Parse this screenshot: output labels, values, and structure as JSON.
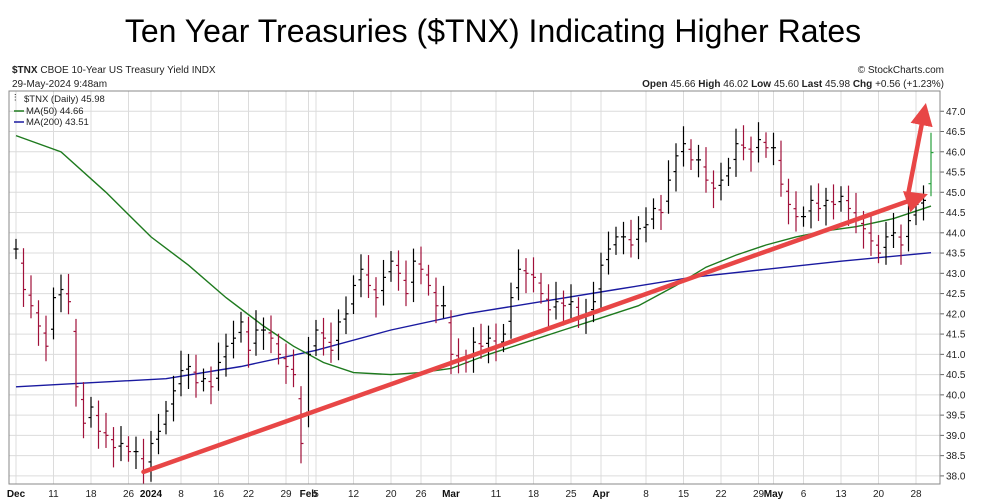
{
  "title": "Ten Year Treasuries ($TNX) Indicating Higher Rates",
  "header": {
    "symbol": "$TNX",
    "description": "CBOE 10-Year US Treasury Yield INDX",
    "date": "29-May-2024 9:48am",
    "credit": "© StockCharts.com",
    "open_label": "Open",
    "open": "45.66",
    "high_label": "High",
    "high": "46.02",
    "low_label": "Low",
    "low": "45.60",
    "last_label": "Last",
    "last": "45.98",
    "chg_label": "Chg",
    "chg": "+0.56 (+1.23%)"
  },
  "legend": {
    "price": "$TNX (Daily) 45.98",
    "ma50": "MA(50) 44.66",
    "ma200": "MA(200) 43.51"
  },
  "colors": {
    "up_bar": "#000000",
    "down_bar": "#a0103a",
    "last_bar": "#27a03c",
    "ma50": "#1e7a1e",
    "ma200": "#1a1aa0",
    "trend_arrow": "#e84646",
    "grid": "#dcdcdc"
  },
  "chart_data": {
    "type": "ohlc",
    "ylim": [
      37.8,
      47.5
    ],
    "y_ticks": [
      "38.0",
      "38.5",
      "39.0",
      "39.5",
      "40.0",
      "40.5",
      "41.0",
      "41.5",
      "42.0",
      "42.5",
      "43.0",
      "43.5",
      "44.0",
      "44.5",
      "45.0",
      "45.5",
      "46.0",
      "46.5",
      "47.0"
    ],
    "x_ticks": [
      {
        "label": "Dec",
        "i": 0,
        "bold": true
      },
      {
        "label": "11",
        "i": 5
      },
      {
        "label": "18",
        "i": 10
      },
      {
        "label": "26",
        "i": 15
      },
      {
        "label": "2024",
        "i": 18,
        "bold": true
      },
      {
        "label": "8",
        "i": 22
      },
      {
        "label": "16",
        "i": 27
      },
      {
        "label": "22",
        "i": 31
      },
      {
        "label": "29",
        "i": 36
      },
      {
        "label": "Feb",
        "i": 39,
        "bold": true
      },
      {
        "label": "5",
        "i": 40
      },
      {
        "label": "12",
        "i": 45
      },
      {
        "label": "20",
        "i": 50
      },
      {
        "label": "26",
        "i": 54
      },
      {
        "label": "Mar",
        "i": 58,
        "bold": true
      },
      {
        "label": "11",
        "i": 64
      },
      {
        "label": "18",
        "i": 69
      },
      {
        "label": "25",
        "i": 74
      },
      {
        "label": "Apr",
        "i": 78,
        "bold": true
      },
      {
        "label": "8",
        "i": 84
      },
      {
        "label": "15",
        "i": 89
      },
      {
        "label": "22",
        "i": 94
      },
      {
        "label": "29",
        "i": 99
      },
      {
        "label": "May",
        "i": 101,
        "bold": true
      },
      {
        "label": "6",
        "i": 105
      },
      {
        "label": "13",
        "i": 110
      },
      {
        "label": "20",
        "i": 115
      },
      {
        "label": "28",
        "i": 120
      }
    ],
    "close": [
      43.6,
      42.6,
      42.2,
      41.7,
      41.2,
      42.4,
      42.6,
      42.3,
      40.2,
      39.3,
      39.7,
      39.1,
      39.0,
      38.7,
      38.8,
      38.6,
      38.6,
      38.1,
      38.8,
      39.1,
      39.6,
      40.1,
      40.6,
      40.7,
      40.3,
      40.4,
      40.2,
      40.8,
      41.2,
      41.4,
      41.8,
      41.1,
      41.6,
      41.6,
      41.4,
      41.0,
      40.7,
      40.5,
      38.8,
      41.0,
      41.6,
      41.4,
      41.1,
      41.8,
      42.0,
      42.7,
      43.1,
      42.7,
      42.4,
      42.9,
      43.3,
      43.0,
      42.5,
      43.3,
      43.1,
      42.7,
      42.2,
      42.2,
      41.0,
      40.9,
      40.8,
      41.3,
      41.2,
      41.4,
      41.2,
      41.5,
      42.4,
      43.1,
      43.0,
      42.9,
      42.5,
      42.1,
      42.3,
      42.2,
      42.3,
      41.9,
      42.0,
      42.3,
      43.2,
      43.6,
      43.9,
      43.9,
      43.7,
      44.1,
      44.2,
      44.6,
      44.5,
      45.3,
      45.9,
      46.2,
      45.8,
      45.8,
      45.3,
      45.1,
      45.3,
      45.6,
      46.2,
      46.1,
      46.0,
      46.3,
      46.1,
      46.1,
      45.2,
      44.7,
      44.4,
      44.4,
      44.8,
      44.6,
      44.8,
      44.7,
      44.9,
      44.6,
      44.3,
      44.1,
      43.8,
      43.5,
      43.9,
      44.0,
      43.7,
      44.3,
      44.7,
      44.8,
      45.98
    ],
    "ma50_points": [
      [
        0,
        46.4
      ],
      [
        6,
        46.0
      ],
      [
        12,
        45.0
      ],
      [
        18,
        43.9
      ],
      [
        23,
        43.2
      ],
      [
        28,
        42.4
      ],
      [
        33,
        41.7
      ],
      [
        37,
        41.2
      ],
      [
        41,
        40.8
      ],
      [
        45,
        40.55
      ],
      [
        50,
        40.5
      ],
      [
        54,
        40.55
      ],
      [
        58,
        40.65
      ],
      [
        63,
        41.0
      ],
      [
        68,
        41.3
      ],
      [
        73,
        41.6
      ],
      [
        78,
        41.9
      ],
      [
        83,
        42.2
      ],
      [
        88,
        42.7
      ],
      [
        92,
        43.15
      ],
      [
        96,
        43.45
      ],
      [
        100,
        43.7
      ],
      [
        104,
        43.9
      ],
      [
        108,
        44.05
      ],
      [
        112,
        44.15
      ],
      [
        117,
        44.35
      ],
      [
        122,
        44.66
      ]
    ],
    "ma200_points": [
      [
        0,
        40.2
      ],
      [
        10,
        40.3
      ],
      [
        20,
        40.4
      ],
      [
        30,
        40.7
      ],
      [
        40,
        41.1
      ],
      [
        50,
        41.6
      ],
      [
        60,
        42.0
      ],
      [
        70,
        42.3
      ],
      [
        80,
        42.6
      ],
      [
        90,
        42.9
      ],
      [
        100,
        43.1
      ],
      [
        110,
        43.3
      ],
      [
        122,
        43.51
      ]
    ],
    "trendline": {
      "from": [
        17,
        38.1
      ],
      "to": [
        120,
        44.85
      ]
    },
    "breakout_arrow": {
      "from": [
        119,
        45.0
      ],
      "to": [
        121,
        46.9
      ]
    }
  }
}
